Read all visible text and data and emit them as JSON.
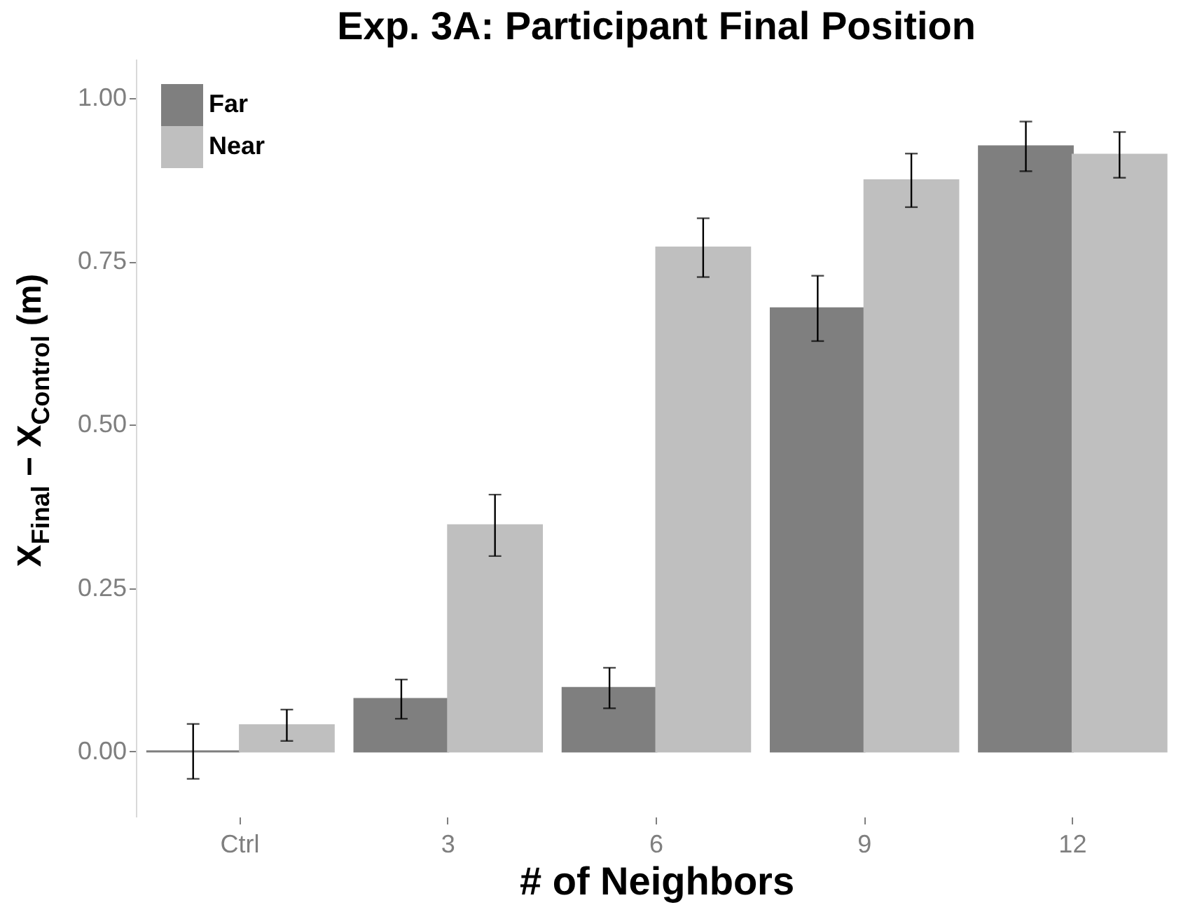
{
  "chart_data": {
    "type": "bar",
    "title": "Exp. 3A: Participant Final Position",
    "xlabel": "# of Neighbors",
    "ylabel": "X$_{Final}$ − X$_{Control}$ (m)",
    "categories": [
      "Ctrl",
      "3",
      "6",
      "9",
      "12"
    ],
    "series": [
      {
        "name": "Far",
        "color": "#7f7f7f",
        "values": [
          0,
          0.08,
          0.097,
          0.678,
          0.926
        ],
        "errors": [
          0.042,
          0.03,
          0.031,
          0.05,
          0.038
        ]
      },
      {
        "name": "Near",
        "color": "#bfbfbf",
        "values": [
          0.04,
          0.346,
          0.771,
          0.874,
          0.913
        ],
        "errors": [
          0.024,
          0.047,
          0.045,
          0.041,
          0.035
        ]
      }
    ],
    "ylim": [
      -0.1,
      1.06
    ],
    "yticks": [
      {
        "value": 0,
        "label": "0.00"
      },
      0.25,
      {
        "value": 0.5,
        "label": "0.50"
      },
      0.75,
      {
        "value": 1,
        "label": "1.00"
      }
    ],
    "grid": false,
    "legend": "top left"
  }
}
